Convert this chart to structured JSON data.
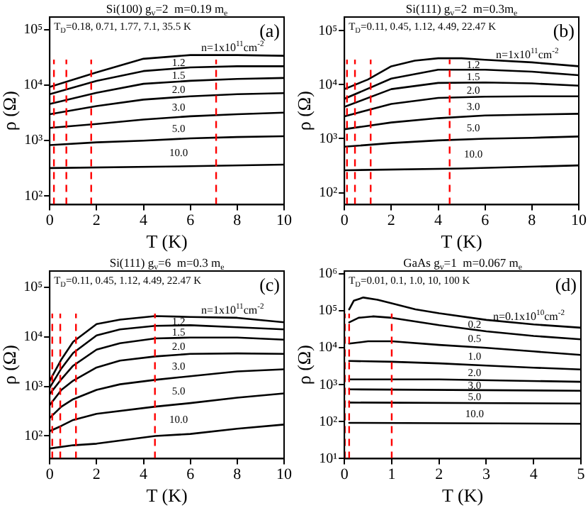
{
  "chart_data": [
    {
      "type": "line",
      "title": "Si(100) g$_{v}$=2  m=0.19 m$_{e}$",
      "xlabel": "T (K)",
      "ylabel": "ρ (Ω)",
      "log": "y",
      "marker": "none",
      "line_style": "solid",
      "legend": false,
      "grid": false,
      "xlim": [
        0,
        10
      ],
      "xticks": [
        0,
        2,
        4,
        6,
        8,
        10
      ],
      "ylim": [
        70,
        170000
      ],
      "yticks": [
        {
          "value": 100,
          "label": "10²"
        },
        {
          "value": 1000,
          "label": "10³"
        },
        {
          "value": 10000,
          "label": "10⁴"
        },
        {
          "value": 100000,
          "label": "10⁵"
        }
      ],
      "annotations": [
        "T$_{D}$=0.18, 0.71, 1.77, 7.1, 35.5 K",
        "(a)"
      ],
      "ref_lines": [
        {
          "axis": "x",
          "value": 0.18,
          "color": "#ff0000",
          "line_style": "dashed"
        },
        {
          "axis": "x",
          "value": 0.71,
          "color": "#ff0000",
          "line_style": "dashed"
        },
        {
          "axis": "x",
          "value": 1.77,
          "color": "#ff0000",
          "line_style": "dashed"
        },
        {
          "axis": "x",
          "value": 7.1,
          "color": "#ff0000",
          "line_style": "dashed"
        }
      ],
      "series": [
        {
          "name": "n=1x10$^{11}$cm$^{-2}$",
          "color": "#000000",
          "x": [
            0,
            2,
            4,
            6,
            8,
            10
          ],
          "values": [
            9300,
            17000,
            30000,
            35000,
            35000,
            34000
          ]
        },
        {
          "name": "1.2",
          "color": "#000000",
          "x": [
            0,
            2,
            4,
            6,
            8,
            10
          ],
          "values": [
            6900,
            12000,
            18000,
            21000,
            22000,
            22000
          ]
        },
        {
          "name": "1.5",
          "color": "#000000",
          "x": [
            0,
            2,
            4,
            6,
            8,
            10
          ],
          "values": [
            4600,
            7300,
            10600,
            12000,
            13000,
            13500
          ]
        },
        {
          "name": "2.0",
          "color": "#000000",
          "x": [
            0,
            2,
            4,
            6,
            8,
            10
          ],
          "values": [
            3000,
            4200,
            5500,
            6300,
            6900,
            7200
          ]
        },
        {
          "name": "3.0",
          "color": "#000000",
          "x": [
            0,
            2,
            4,
            6,
            8,
            10
          ],
          "values": [
            1700,
            2000,
            2400,
            2750,
            3000,
            3200
          ]
        },
        {
          "name": "5.0",
          "color": "#000000",
          "x": [
            0,
            2,
            4,
            6,
            8,
            10
          ],
          "values": [
            830,
            930,
            1000,
            1100,
            1160,
            1200
          ]
        },
        {
          "name": "10.0",
          "color": "#000000",
          "x": [
            0,
            5,
            10
          ],
          "values": [
            320,
            340,
            370
          ]
        }
      ]
    },
    {
      "type": "line",
      "title": "Si(111) g$_{v}$=2  m=0.3m$_{e}$",
      "xlabel": "T (K)",
      "ylabel": "ρ (Ω)",
      "log": "y",
      "marker": "none",
      "line_style": "solid",
      "legend": false,
      "grid": false,
      "xlim": [
        0,
        10
      ],
      "xticks": [
        0,
        2,
        4,
        6,
        8,
        10
      ],
      "ylim": [
        60,
        180000
      ],
      "yticks": [
        {
          "value": 100,
          "label": "10²"
        },
        {
          "value": 1000,
          "label": "10³"
        },
        {
          "value": 10000,
          "label": "10⁴"
        },
        {
          "value": 100000,
          "label": "10⁵"
        }
      ],
      "annotations": [
        "T$_{D}$=0.11, 0.45, 1.12, 4.49, 22.47 K",
        "(b)"
      ],
      "ref_lines": [
        {
          "axis": "x",
          "value": 0.11,
          "color": "#ff0000",
          "line_style": "dashed"
        },
        {
          "axis": "x",
          "value": 0.45,
          "color": "#ff0000",
          "line_style": "dashed"
        },
        {
          "axis": "x",
          "value": 1.12,
          "color": "#ff0000",
          "line_style": "dashed"
        },
        {
          "axis": "x",
          "value": 4.49,
          "color": "#ff0000",
          "line_style": "dashed"
        }
      ],
      "series": [
        {
          "name": "n=1x10$^{11}$cm$^{-2}$",
          "color": "#000000",
          "x": [
            0,
            1,
            2,
            3,
            4,
            5,
            6,
            8,
            10
          ],
          "values": [
            8300,
            12500,
            22000,
            28000,
            31000,
            31000,
            29000,
            26000,
            22000
          ]
        },
        {
          "name": "1.2",
          "color": "#000000",
          "x": [
            0,
            2,
            4,
            6,
            8,
            10
          ],
          "values": [
            5500,
            13000,
            19000,
            19000,
            17500,
            15000
          ]
        },
        {
          "name": "1.5",
          "color": "#000000",
          "x": [
            0,
            2,
            4,
            6,
            8,
            10
          ],
          "values": [
            3900,
            8300,
            10800,
            11000,
            10600,
            9600
          ]
        },
        {
          "name": "2.0",
          "color": "#000000",
          "x": [
            0,
            2,
            4,
            6,
            8,
            10
          ],
          "values": [
            2600,
            4400,
            5700,
            6000,
            6100,
            6100
          ]
        },
        {
          "name": "3.0",
          "color": "#000000",
          "x": [
            0,
            2,
            4,
            6,
            8,
            10
          ],
          "values": [
            1500,
            2000,
            2400,
            2700,
            2800,
            2900
          ]
        },
        {
          "name": "5.0",
          "color": "#000000",
          "x": [
            0,
            2,
            4,
            6,
            8,
            10
          ],
          "values": [
            710,
            830,
            930,
            1000,
            1040,
            1100
          ]
        },
        {
          "name": "10.0",
          "color": "#000000",
          "x": [
            0,
            5,
            10
          ],
          "values": [
            260,
            280,
            320
          ]
        }
      ]
    },
    {
      "type": "line",
      "title": "Si(111) g$_{v}$=6  m=0.3 m$_{e}$",
      "xlabel": "T (K)",
      "ylabel": "ρ (Ω)",
      "log": "y",
      "marker": "none",
      "line_style": "solid",
      "legend": false,
      "grid": false,
      "xlim": [
        0,
        10
      ],
      "xticks": [
        0,
        2,
        4,
        6,
        8,
        10
      ],
      "ylim": [
        35,
        210000
      ],
      "yticks": [
        {
          "value": 100,
          "label": "10²"
        },
        {
          "value": 1000,
          "label": "10³"
        },
        {
          "value": 10000,
          "label": "10⁴"
        },
        {
          "value": 100000,
          "label": "10⁵"
        }
      ],
      "annotations": [
        "T$_{D}$=0.11, 0.45, 1.12, 4.49, 22.47 K",
        "(c)"
      ],
      "ref_lines": [
        {
          "axis": "x",
          "value": 0.11,
          "color": "#ff0000",
          "line_style": "dashed"
        },
        {
          "axis": "x",
          "value": 0.45,
          "color": "#ff0000",
          "line_style": "dashed"
        },
        {
          "axis": "x",
          "value": 1.12,
          "color": "#ff0000",
          "line_style": "dashed"
        },
        {
          "axis": "x",
          "value": 4.49,
          "color": "#ff0000",
          "line_style": "dashed"
        }
      ],
      "series": [
        {
          "name": "n=1x10$^{11}$cm$^{-2}$",
          "color": "#000000",
          "x": [
            0,
            0.5,
            1,
            2,
            3,
            4.5,
            6,
            8,
            10
          ],
          "values": [
            1300,
            3500,
            7900,
            18000,
            22000,
            26000,
            25000,
            24000,
            19500
          ]
        },
        {
          "name": "1.2",
          "color": "#000000",
          "x": [
            0,
            0.5,
            1,
            2,
            3,
            4.5,
            6,
            8,
            10
          ],
          "values": [
            940,
            2300,
            4700,
            10600,
            14000,
            16500,
            17000,
            15500,
            14000
          ]
        },
        {
          "name": "1.5",
          "color": "#000000",
          "x": [
            0,
            0.5,
            1,
            2,
            3,
            4.5,
            6,
            8,
            10
          ],
          "values": [
            700,
            1400,
            2600,
            5500,
            7400,
            9200,
            9600,
            9600,
            8700
          ]
        },
        {
          "name": "2.0",
          "color": "#000000",
          "x": [
            0,
            0.5,
            1,
            2,
            3,
            4.5,
            6,
            8,
            10
          ],
          "values": [
            420,
            850,
            1300,
            2400,
            3300,
            4000,
            4500,
            4600,
            4500
          ]
        },
        {
          "name": "3.0",
          "color": "#000000",
          "x": [
            0,
            0.5,
            1,
            2,
            3,
            4.5,
            6,
            8,
            10
          ],
          "values": [
            230,
            390,
            550,
            850,
            1100,
            1350,
            1600,
            2000,
            2200
          ]
        },
        {
          "name": "5.0",
          "color": "#000000",
          "x": [
            0,
            0.5,
            1,
            2,
            4.5,
            6,
            8,
            10
          ],
          "values": [
            125,
            160,
            210,
            280,
            390,
            460,
            590,
            720
          ]
        },
        {
          "name": "10.0",
          "color": "#000000",
          "x": [
            0,
            1,
            2,
            4.5,
            6,
            8,
            10
          ],
          "values": [
            56,
            65,
            70,
            100,
            110,
            140,
            170
          ]
        }
      ]
    },
    {
      "type": "line",
      "title": "GaAs g$_{v}$=1  m=0.067 m$_{e}$",
      "xlabel": "T (K)",
      "ylabel": "ρ (Ω)",
      "log": "y",
      "marker": "none",
      "line_style": "solid",
      "legend": false,
      "grid": false,
      "xlim": [
        0,
        5
      ],
      "xticks": [
        0,
        1,
        2,
        3,
        4,
        5
      ],
      "ylim": [
        10,
        1200000
      ],
      "yticks": [
        {
          "value": 10,
          "label": "10¹"
        },
        {
          "value": 100,
          "label": "10²"
        },
        {
          "value": 1000,
          "label": "10³"
        },
        {
          "value": 10000,
          "label": "10⁴"
        },
        {
          "value": 100000,
          "label": "10⁵"
        },
        {
          "value": 1000000,
          "label": "10⁶"
        }
      ],
      "annotations": [
        "T$_{D}$=0.01, 0.1, 1.0, 10, 100 K",
        "(d)"
      ],
      "ref_lines": [
        {
          "axis": "x",
          "value": 0.01,
          "color": "#ff0000",
          "line_style": "dashed"
        },
        {
          "axis": "x",
          "value": 0.1,
          "color": "#ff0000",
          "line_style": "dashed"
        },
        {
          "axis": "x",
          "value": 1.0,
          "color": "#ff0000",
          "line_style": "dashed"
        }
      ],
      "series": [
        {
          "name": "n=0.1x10$^{10}$cm$^{-2}$",
          "color": "#000000",
          "x": [
            0.1,
            0.2,
            0.4,
            0.7,
            1,
            1.5,
            2,
            3,
            4,
            5
          ],
          "values": [
            110000,
            190000,
            230000,
            200000,
            160000,
            110000,
            86000,
            57000,
            43000,
            35000
          ]
        },
        {
          "name": "0.2",
          "color": "#000000",
          "x": [
            0.1,
            0.3,
            0.6,
            1,
            2,
            3,
            4,
            5
          ],
          "values": [
            49000,
            65000,
            71000,
            65000,
            41000,
            28000,
            21000,
            17000
          ]
        },
        {
          "name": "0.5",
          "color": "#000000",
          "x": [
            0.1,
            0.5,
            1,
            2,
            3,
            4,
            5
          ],
          "values": [
            13000,
            15000,
            15000,
            12000,
            10000,
            8000,
            6400
          ]
        },
        {
          "name": "1.0",
          "color": "#000000",
          "x": [
            0.1,
            1,
            2,
            3,
            4,
            5
          ],
          "values": [
            4400,
            4200,
            3800,
            3300,
            2900,
            2600
          ]
        },
        {
          "name": "2.0",
          "color": "#000000",
          "x": [
            0.1,
            2,
            5
          ],
          "values": [
            1400,
            1400,
            1200
          ]
        },
        {
          "name": "3.0",
          "color": "#000000",
          "x": [
            0.1,
            5
          ],
          "values": [
            750,
            690
          ]
        },
        {
          "name": "5.0",
          "color": "#000000",
          "x": [
            0.1,
            5
          ],
          "values": [
            330,
            310
          ]
        },
        {
          "name": "10.0",
          "color": "#000000",
          "x": [
            0.1,
            5
          ],
          "values": [
            93,
            88
          ]
        }
      ]
    }
  ]
}
